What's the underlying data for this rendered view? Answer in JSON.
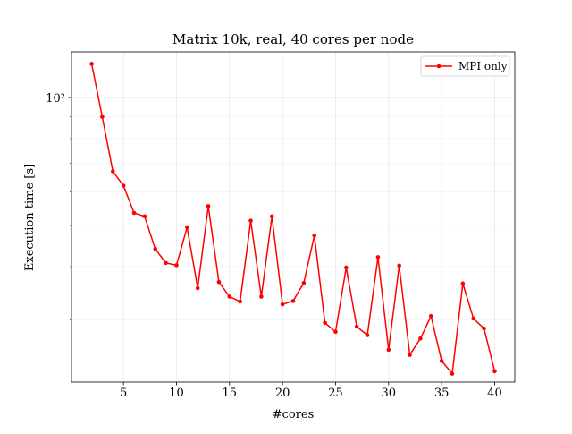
{
  "chart_data": {
    "type": "line",
    "title": "Matrix 10k, real, 40 cores per node",
    "xlabel": "#cores",
    "ylabel": "Execution time [s]",
    "xlim": [
      0.1,
      41.9
    ],
    "ylim": [
      21.4,
      128
    ],
    "yscale": "log",
    "xticks": [
      5,
      10,
      15,
      20,
      25,
      30,
      35,
      40
    ],
    "xtick_labels": [
      "5",
      "10",
      "15",
      "20",
      "25",
      "30",
      "35",
      "40"
    ],
    "yticks": [
      100
    ],
    "ytick_labels": [
      "10²"
    ],
    "grid": true,
    "legend_position": "top-right",
    "series": [
      {
        "name": "MPI only",
        "color": "#ff0000",
        "marker": "circle",
        "x": [
          2,
          3,
          4,
          5,
          6,
          7,
          8,
          9,
          10,
          11,
          12,
          13,
          14,
          15,
          16,
          17,
          18,
          19,
          20,
          21,
          22,
          23,
          24,
          25,
          26,
          27,
          28,
          29,
          30,
          31,
          32,
          33,
          34,
          35,
          36,
          37,
          38,
          39,
          40
        ],
        "y": [
          120,
          90,
          67,
          62,
          53.5,
          52.5,
          44,
          40.8,
          40.3,
          49.5,
          35.6,
          55.5,
          36.8,
          34,
          33.1,
          51.3,
          34,
          52.5,
          32.6,
          33.2,
          36.6,
          47.3,
          29.5,
          28.1,
          39.8,
          28.9,
          27.6,
          42.1,
          25.5,
          40.2,
          24.8,
          27.1,
          30.6,
          24,
          22.4,
          36.5,
          30.2,
          28.6,
          22.7
        ]
      }
    ]
  }
}
